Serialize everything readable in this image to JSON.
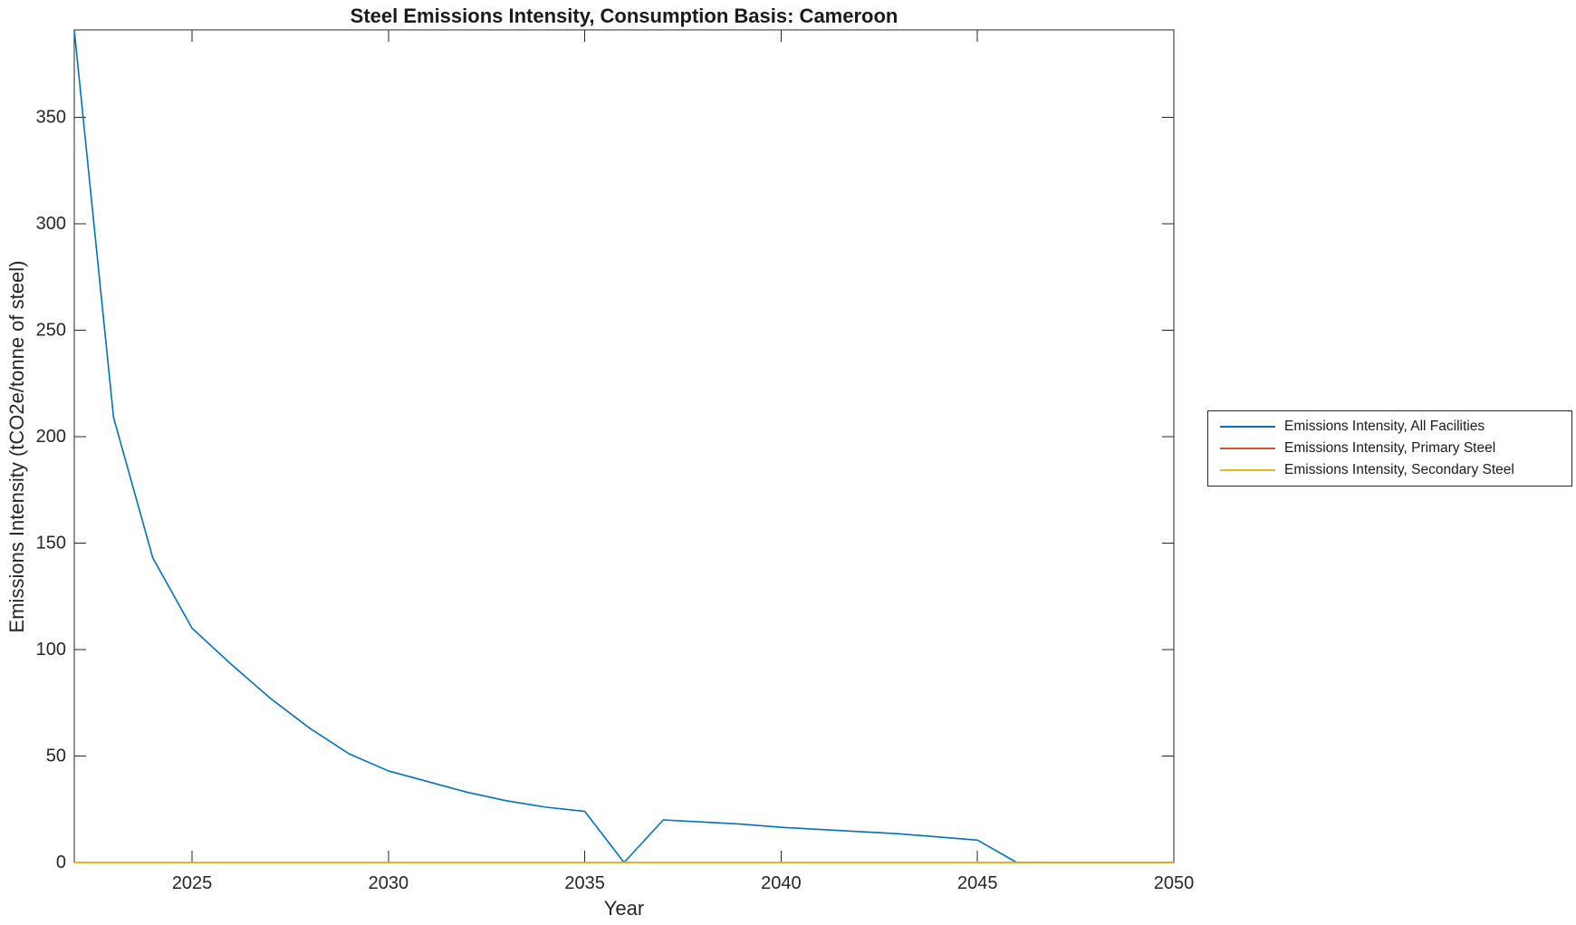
{
  "chart_data": {
    "type": "line",
    "title": "Steel Emissions Intensity, Consumption Basis: Cameroon",
    "xlabel": "Year",
    "ylabel": "Emissions Intensity (tCO2e/tonne of steel)",
    "grid": false,
    "legend_position": "outside-right",
    "axis_color": "#262626",
    "tick_label_color": "#262626",
    "xlim": [
      2022,
      2050
    ],
    "ylim": [
      0,
      391
    ],
    "x_ticks": [
      2025,
      2030,
      2035,
      2040,
      2045,
      2050
    ],
    "y_ticks": [
      0,
      50,
      100,
      150,
      200,
      250,
      300,
      350
    ],
    "x": [
      2022,
      2023,
      2024,
      2025,
      2026,
      2027,
      2028,
      2029,
      2030,
      2031,
      2032,
      2033,
      2034,
      2035,
      2036,
      2037,
      2038,
      2039,
      2040,
      2041,
      2042,
      2043,
      2044,
      2045,
      2046,
      2047,
      2048,
      2049,
      2050
    ],
    "series": [
      {
        "name": "Emissions Intensity, All Facilities",
        "color": "#0072BD",
        "values": [
          391,
          209,
          143,
          110,
          93,
          77,
          63,
          51,
          43,
          38,
          33,
          29,
          26,
          24,
          0,
          20,
          19,
          18,
          16.5,
          15.5,
          14.5,
          13.5,
          12,
          10.5,
          0,
          0,
          0,
          0,
          0
        ]
      },
      {
        "name": "Emissions Intensity, Primary Steel",
        "color": "#D95319",
        "values": [
          0,
          0,
          0,
          0,
          0,
          0,
          0,
          0,
          0,
          0,
          0,
          0,
          0,
          0,
          0,
          0,
          0,
          0,
          0,
          0,
          0,
          0,
          0,
          0,
          0,
          0,
          0,
          0,
          0
        ]
      },
      {
        "name": "Emissions Intensity, Secondary Steel",
        "color": "#EDB120",
        "values": [
          0,
          0,
          0,
          0,
          0,
          0,
          0,
          0,
          0,
          0,
          0,
          0,
          0,
          0,
          0,
          0,
          0,
          0,
          0,
          0,
          0,
          0,
          0,
          0,
          0,
          0,
          0,
          0,
          0
        ]
      }
    ]
  }
}
